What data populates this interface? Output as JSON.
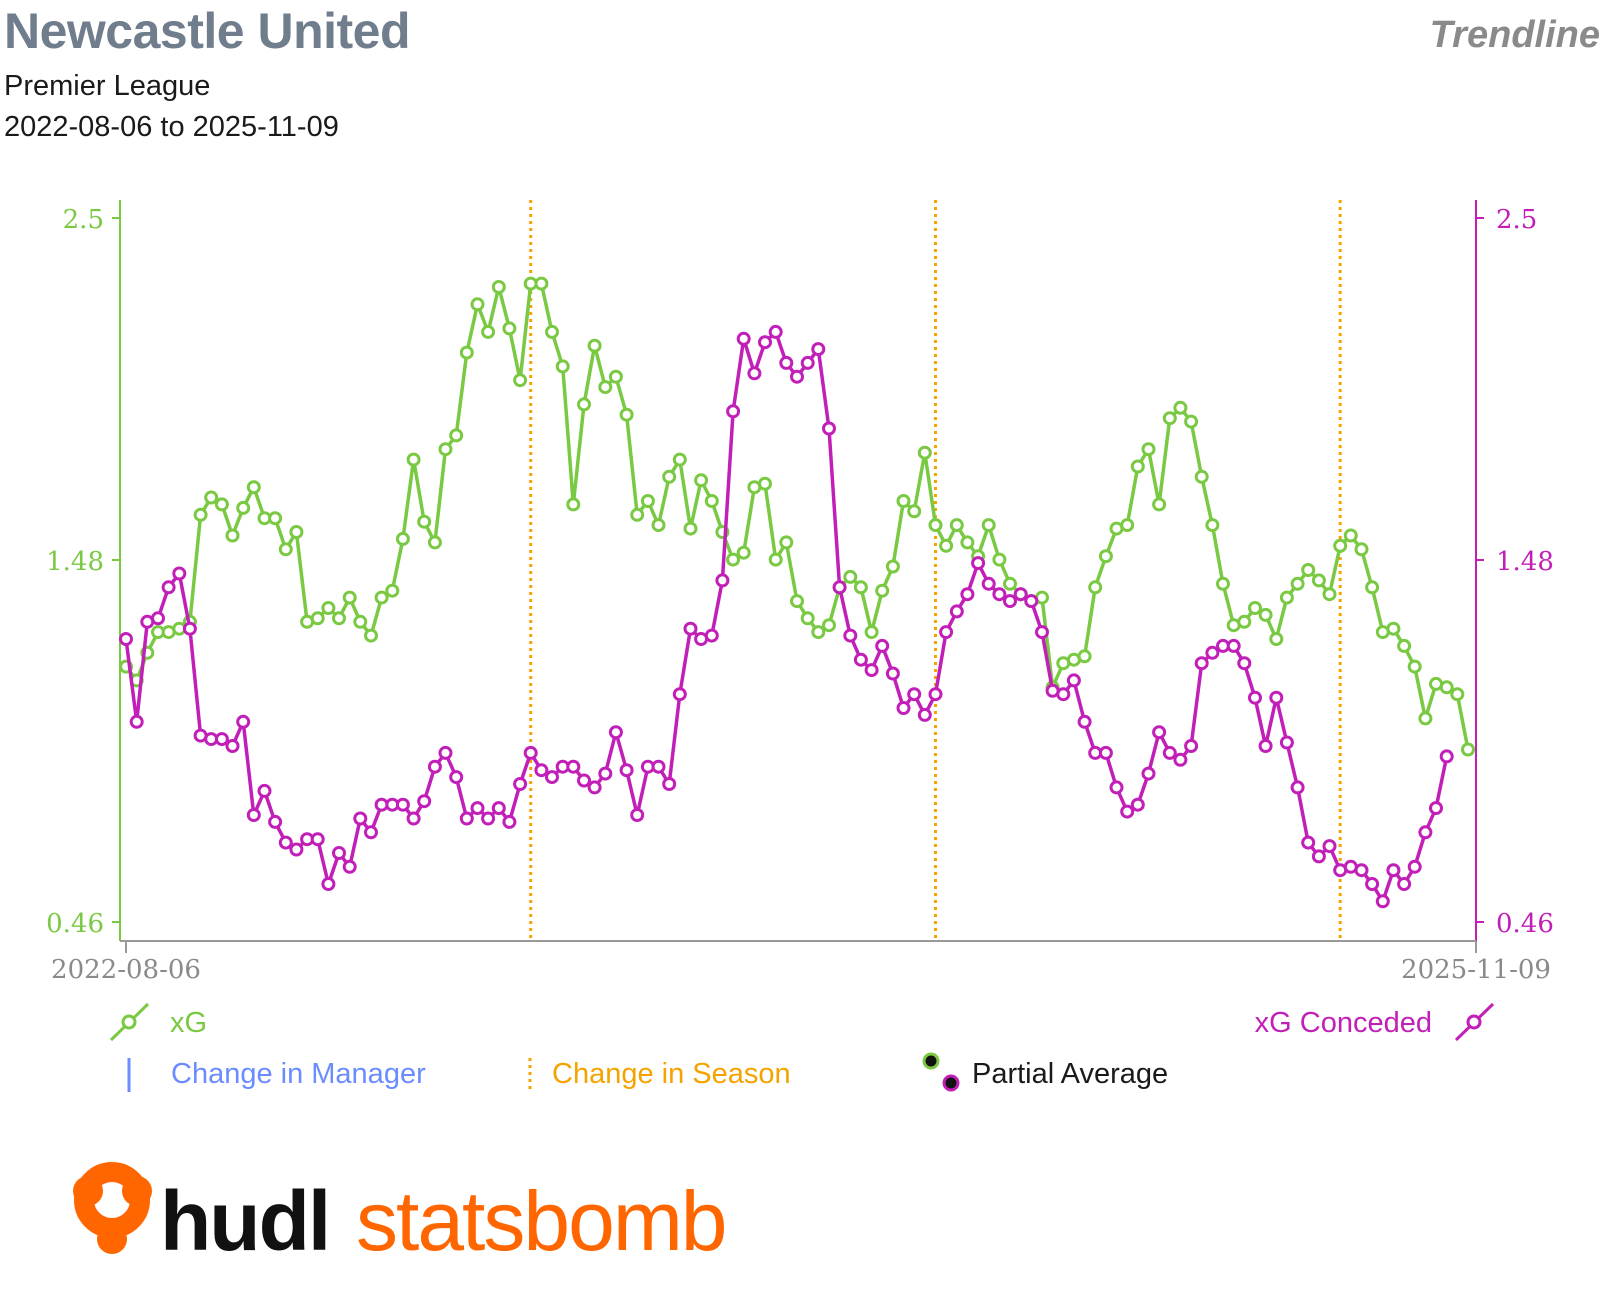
{
  "header": {
    "title": "Newcastle United",
    "subtitle": "Premier League",
    "date_range": "2022-08-06 to 2025-11-09",
    "chart_kind": "Trendline"
  },
  "legend": {
    "left_series": "xG",
    "right_series": "xG Conceded",
    "manager_change": "Change in Manager",
    "season_change": "Change in Season",
    "partial_average": "Partial Average"
  },
  "brand": {
    "part1": "hudl",
    "part2": "statsbomb"
  },
  "colors": {
    "xg": "#7ac943",
    "xg_conceded": "#c21fb8",
    "season_line": "#f5a300",
    "manager_line": "#6b8cff",
    "title": "#6f7d8c",
    "brand_orange": "#ff6600"
  },
  "chart_data": {
    "type": "line",
    "x_start_label": "2022-08-06",
    "x_end_label": "2025-11-09",
    "y_left_ticks": [
      "2.5",
      "1.48",
      "0.46"
    ],
    "y_right_ticks": [
      "2.5",
      "1.48",
      "0.46"
    ],
    "ylim": [
      0.46,
      2.5
    ],
    "season_change_indices": [
      38,
      76,
      114
    ],
    "series": [
      {
        "name": "xG",
        "axis": "left",
        "values": [
          1.2,
          1.16,
          1.24,
          1.3,
          1.3,
          1.31,
          1.33,
          1.64,
          1.69,
          1.67,
          1.58,
          1.66,
          1.72,
          1.63,
          1.63,
          1.54,
          1.59,
          1.33,
          1.34,
          1.37,
          1.34,
          1.4,
          1.33,
          1.29,
          1.4,
          1.42,
          1.57,
          1.8,
          1.62,
          1.56,
          1.83,
          1.87,
          2.11,
          2.25,
          2.17,
          2.3,
          2.18,
          2.03,
          2.31,
          2.31,
          2.17,
          2.07,
          1.67,
          1.96,
          2.13,
          2.01,
          2.04,
          1.93,
          1.64,
          1.68,
          1.61,
          1.75,
          1.8,
          1.6,
          1.74,
          1.68,
          1.59,
          1.51,
          1.53,
          1.72,
          1.73,
          1.51,
          1.56,
          1.39,
          1.34,
          1.3,
          1.32,
          1.43,
          1.46,
          1.43,
          1.3,
          1.42,
          1.49,
          1.68,
          1.65,
          1.82,
          1.61,
          1.55,
          1.61,
          1.56,
          1.52,
          1.61,
          1.51,
          1.44,
          1.41,
          1.39,
          1.4,
          1.14,
          1.21,
          1.22,
          1.23,
          1.43,
          1.52,
          1.6,
          1.61,
          1.78,
          1.83,
          1.67,
          1.92,
          1.95,
          1.91,
          1.75,
          1.61,
          1.44,
          1.32,
          1.33,
          1.37,
          1.35,
          1.28,
          1.4,
          1.44,
          1.48,
          1.45,
          1.41,
          1.55,
          1.58,
          1.54,
          1.43,
          1.3,
          1.31,
          1.26,
          1.2,
          1.05,
          1.15,
          1.14,
          1.12,
          0.96
        ]
      },
      {
        "name": "xG Conceded",
        "axis": "right",
        "values": [
          1.28,
          1.04,
          1.33,
          1.34,
          1.43,
          1.47,
          1.31,
          1.0,
          0.99,
          0.99,
          0.97,
          1.04,
          0.77,
          0.84,
          0.75,
          0.69,
          0.67,
          0.7,
          0.7,
          0.57,
          0.66,
          0.62,
          0.76,
          0.72,
          0.8,
          0.8,
          0.8,
          0.76,
          0.81,
          0.91,
          0.95,
          0.88,
          0.76,
          0.79,
          0.76,
          0.79,
          0.75,
          0.86,
          0.95,
          0.9,
          0.88,
          0.91,
          0.91,
          0.87,
          0.85,
          0.89,
          1.01,
          0.9,
          0.77,
          0.91,
          0.91,
          0.86,
          1.12,
          1.31,
          1.28,
          1.29,
          1.45,
          1.94,
          2.15,
          2.05,
          2.14,
          2.17,
          2.08,
          2.04,
          2.08,
          2.12,
          1.89,
          1.43,
          1.29,
          1.22,
          1.19,
          1.26,
          1.18,
          1.08,
          1.12,
          1.06,
          1.12,
          1.3,
          1.36,
          1.41,
          1.5,
          1.44,
          1.41,
          1.39,
          1.41,
          1.39,
          1.3,
          1.13,
          1.12,
          1.16,
          1.04,
          0.95,
          0.95,
          0.85,
          0.78,
          0.8,
          0.89,
          1.01,
          0.95,
          0.93,
          0.97,
          1.21,
          1.24,
          1.26,
          1.26,
          1.21,
          1.11,
          0.97,
          1.11,
          0.98,
          0.85,
          0.69,
          0.65,
          0.68,
          0.61,
          0.62,
          0.61,
          0.57,
          0.52,
          0.61,
          0.57,
          0.62,
          0.72,
          0.79,
          0.94
        ]
      }
    ],
    "grid": false,
    "legend_placement": "bottom"
  }
}
